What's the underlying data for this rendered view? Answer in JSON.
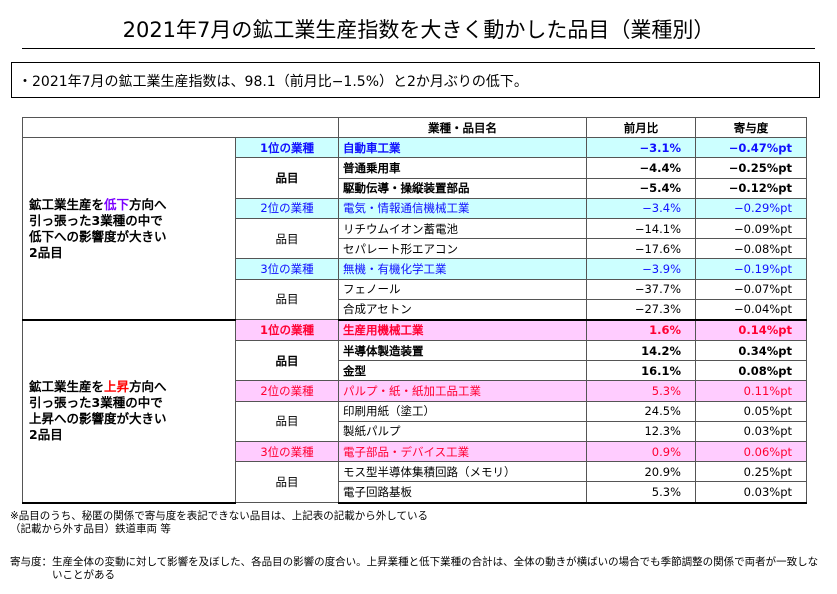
{
  "header": {
    "title": "2021年7月の鉱工業生産指数を大きく動かした品目（業種別）"
  },
  "summary": "・2021年7月の鉱工業生産指数は、98.1（前月比−1.5%）と2か月ぶりの低下。",
  "table": {
    "columns": [
      "業種・品目名",
      "前月比",
      "寄与度"
    ],
    "item_label": "品目",
    "groups": [
      {
        "label_lines": [
          [
            "鉱工業生産を",
            "低下",
            "方向へ"
          ],
          [
            "引っ張った3業種の中で"
          ],
          [
            "低下への影響度が大きい"
          ],
          [
            "2品目"
          ]
        ],
        "sectors": [
          {
            "rank": "1位の業種",
            "name": "自動車工業",
            "change": "−3.1%",
            "contribution": "−0.47%pt",
            "items": [
              {
                "name": "普通乗用車",
                "change": "−4.4%",
                "contribution": "−0.25%pt"
              },
              {
                "name": "駆動伝導・操縦装置部品",
                "change": "−5.4%",
                "contribution": "−0.12%pt"
              }
            ]
          },
          {
            "rank": "2位の業種",
            "name": "電気・情報通信機械工業",
            "change": "−3.4%",
            "contribution": "−0.29%pt",
            "items": [
              {
                "name": "リチウムイオン蓄電池",
                "change": "−14.1%",
                "contribution": "−0.09%pt"
              },
              {
                "name": "セパレート形エアコン",
                "change": "−17.6%",
                "contribution": "−0.08%pt"
              }
            ]
          },
          {
            "rank": "3位の業種",
            "name": "無機・有機化学工業",
            "change": "−3.9%",
            "contribution": "−0.19%pt",
            "items": [
              {
                "name": "フェノール",
                "change": "−37.7%",
                "contribution": "−0.07%pt"
              },
              {
                "name": "合成アセトン",
                "change": "−27.3%",
                "contribution": "−0.04%pt"
              }
            ]
          }
        ]
      },
      {
        "label_lines": [
          [
            "鉱工業生産を",
            "上昇",
            "方向へ"
          ],
          [
            "引っ張った3業種の中で"
          ],
          [
            "上昇への影響度が大きい"
          ],
          [
            "2品目"
          ]
        ],
        "sectors": [
          {
            "rank": "1位の業種",
            "name": "生産用機械工業",
            "change": "1.6%",
            "contribution": "0.14%pt",
            "items": [
              {
                "name": "半導体製造装置",
                "change": "14.2%",
                "contribution": "0.34%pt"
              },
              {
                "name": "金型",
                "change": "16.1%",
                "contribution": "0.08%pt"
              }
            ]
          },
          {
            "rank": "2位の業種",
            "name": "パルプ・紙・紙加工品工業",
            "change": "5.3%",
            "contribution": "0.11%pt",
            "items": [
              {
                "name": "印刷用紙（塗工）",
                "change": "24.5%",
                "contribution": "0.05%pt"
              },
              {
                "name": "製紙パルプ",
                "change": "12.3%",
                "contribution": "0.03%pt"
              }
            ]
          },
          {
            "rank": "3位の業種",
            "name": "電子部品・デバイス工業",
            "change": "0.9%",
            "contribution": "0.06%pt",
            "items": [
              {
                "name": "モス型半導体集積回路（メモリ）",
                "change": "20.9%",
                "contribution": "0.25%pt"
              },
              {
                "name": "電子回路基板",
                "change": "5.3%",
                "contribution": "0.03%pt"
              }
            ]
          }
        ]
      }
    ]
  },
  "notes": {
    "lines": [
      "※品目のうち、秘匿の関係で寄与度を表記できない品目は、上記表の記載から外している",
      "（記載から外す品目）鉄道車両 等"
    ],
    "definition_label": "寄与度：",
    "definition": "生産全体の変動に対して影響を及ぼした、各品目の影響の度合い。上昇業種と低下業種の合計は、全体の動きが横ばいの場合でも季節調整の関係で両者が一致しないことがある"
  }
}
